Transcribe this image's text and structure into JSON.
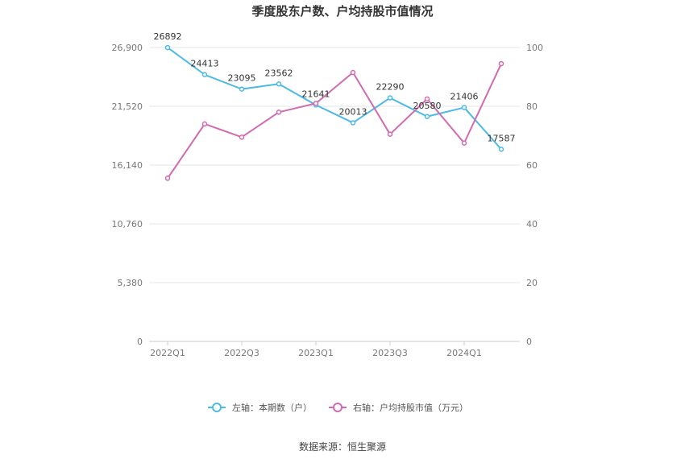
{
  "chart_data": {
    "type": "line",
    "title": "季度股东户数、户均持股市值情况",
    "categories": [
      "2022Q1",
      "2022Q2",
      "2022Q3",
      "2022Q4",
      "2023Q1",
      "2023Q2",
      "2023Q3",
      "2023Q4",
      "2024Q1",
      "2024Q2"
    ],
    "x_tick_labels": [
      "2022Q1",
      "2022Q3",
      "2023Q1",
      "2023Q3",
      "2024Q1"
    ],
    "left_axis": {
      "ticks": [
        "0",
        "5,380",
        "10,760",
        "16,140",
        "21,520",
        "26,900"
      ],
      "ylim": [
        0,
        26900
      ]
    },
    "right_axis": {
      "ticks": [
        "0",
        "20",
        "40",
        "60",
        "80",
        "100"
      ],
      "ylim": [
        0,
        100
      ]
    },
    "series": [
      {
        "name": "左轴：本期数（户）",
        "axis": "left",
        "color": "#4cb9e7",
        "values": [
          26892,
          24413,
          23095,
          23562,
          21641,
          20013,
          22290,
          20580,
          21406,
          17587
        ],
        "labels": [
          "26892",
          "24413",
          "23095",
          "23562",
          "21641",
          "20013",
          "22290",
          "20580",
          "21406",
          "17587"
        ]
      },
      {
        "name": "右轴：户均持股市值（万元）",
        "axis": "right",
        "color": "#d16aaf",
        "values": [
          55.5,
          74,
          69.5,
          78,
          81,
          91.5,
          70.5,
          82.5,
          67.5,
          94.5
        ]
      }
    ],
    "legend": [
      {
        "label": "左轴：本期数（户）",
        "color": "#4cb9e7"
      },
      {
        "label": "右轴：户均持股市值（万元）",
        "color": "#d16aaf"
      }
    ],
    "legend_position": "bottom-center",
    "grid": true
  },
  "footer": {
    "source": "数据来源：恒生聚源"
  }
}
